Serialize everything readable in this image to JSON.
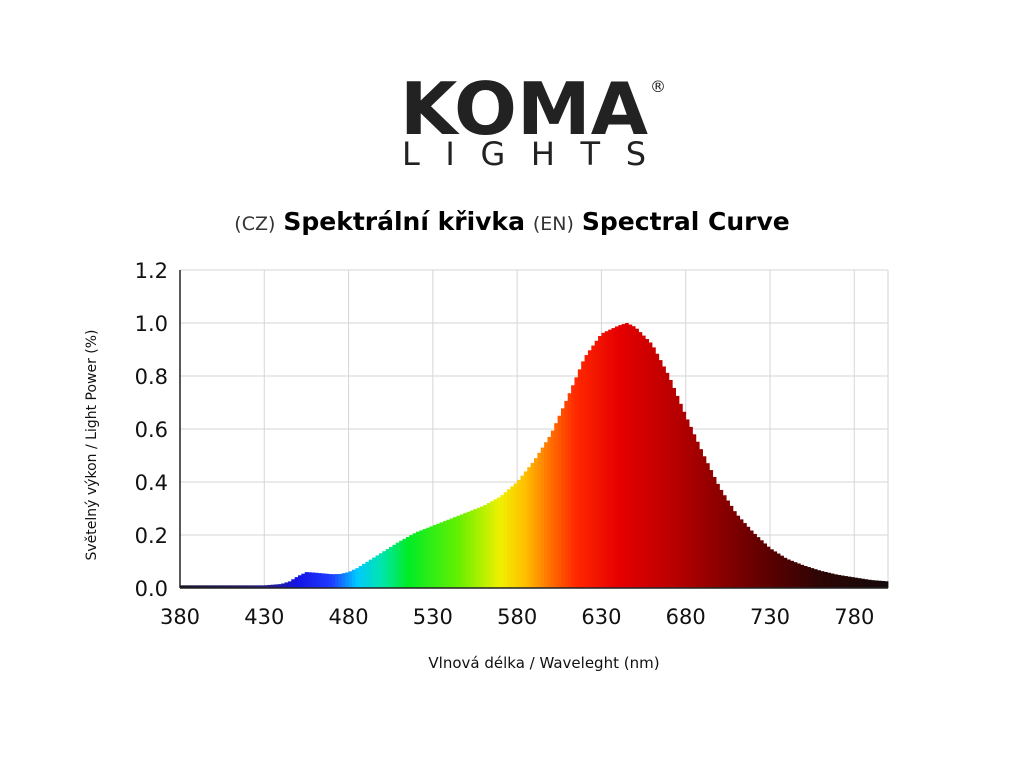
{
  "logo": {
    "brand": "KOMA",
    "sub": "LIGHTS",
    "registered": "®"
  },
  "header": {
    "cz_tag": "(CZ)",
    "cz_title": "Spektrální křivka",
    "en_tag": "(EN)",
    "en_title": "Spectral Curve"
  },
  "chart_data": {
    "type": "area",
    "title": "Spektrální křivka / Spectral Curve",
    "xlabel": "Vlnová délka / Waveleght (nm)",
    "ylabel": "Světelný výkon / Light Power (%)",
    "xlim": [
      380,
      800
    ],
    "ylim": [
      0,
      1.2
    ],
    "xticks": [
      380,
      430,
      480,
      530,
      580,
      630,
      680,
      730,
      780
    ],
    "xtick_labels": [
      "380",
      "430",
      "480",
      "530",
      "580",
      "630",
      "680",
      "730",
      "780"
    ],
    "yticks": [
      0.0,
      0.2,
      0.4,
      0.6,
      0.8,
      1.0,
      1.2
    ],
    "ytick_labels": [
      "0.0",
      "0.2",
      "0.4",
      "0.6",
      "0.8",
      "1.0",
      "1.2"
    ],
    "grid": true,
    "x": [
      380,
      390,
      400,
      410,
      420,
      430,
      440,
      445,
      450,
      455,
      460,
      465,
      470,
      475,
      480,
      485,
      490,
      500,
      510,
      520,
      530,
      540,
      550,
      560,
      570,
      580,
      590,
      600,
      610,
      620,
      630,
      640,
      645,
      650,
      660,
      670,
      680,
      690,
      700,
      710,
      720,
      730,
      740,
      750,
      760,
      770,
      780,
      790,
      800
    ],
    "y": [
      0.01,
      0.01,
      0.01,
      0.01,
      0.01,
      0.01,
      0.015,
      0.025,
      0.045,
      0.06,
      0.058,
      0.055,
      0.052,
      0.053,
      0.06,
      0.075,
      0.095,
      0.135,
      0.175,
      0.21,
      0.235,
      0.26,
      0.285,
      0.31,
      0.345,
      0.4,
      0.48,
      0.58,
      0.72,
      0.87,
      0.96,
      0.99,
      1.0,
      0.985,
      0.92,
      0.8,
      0.65,
      0.51,
      0.38,
      0.28,
      0.21,
      0.15,
      0.11,
      0.085,
      0.065,
      0.05,
      0.04,
      0.03,
      0.025
    ]
  }
}
